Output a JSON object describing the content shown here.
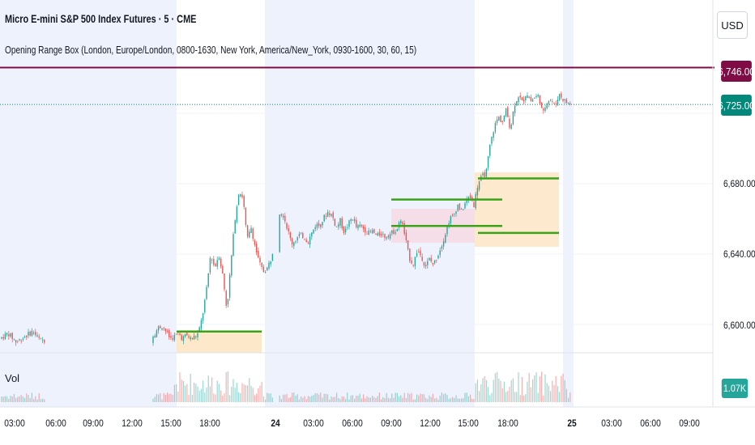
{
  "header": {
    "symbol_title": "Micro E-mini S&P 500 Index Futures · 5 · CME",
    "indicator": "Opening Range Box (London, Europe/London, 0800-1630, New York, America/New_York, 0930-1600, 30, 60, 15)",
    "currency": "USD"
  },
  "price_axis": {
    "ticks": [
      "6,680.00",
      "6,640.00",
      "6,600.00"
    ],
    "labels": {
      "level": "6,746.00",
      "last": "6,725.00",
      "volume": "1.07K"
    }
  },
  "volume_pane": {
    "label": "Vol"
  },
  "time_axis": {
    "ticks": [
      "03:00",
      "06:00",
      "09:00",
      "12:00",
      "15:00",
      "18:00",
      "24",
      "03:00",
      "06:00",
      "09:00",
      "12:00",
      "15:00",
      "18:00",
      "25",
      "03:00",
      "06:00",
      "09:00"
    ]
  },
  "colors": {
    "session_shade": "#eef2fd",
    "range_box_orange": "#fde5c4",
    "range_box_pink": "#f7dbe5",
    "range_line": "#3aa318",
    "level_line": "#800c45",
    "last_price": "#00897b",
    "candle_up": "#26a69a",
    "candle_down": "#ef5350"
  },
  "chart_data": {
    "type": "candlestick",
    "instrument": "Micro E-mini S&P 500 Index Futures",
    "interval": "5",
    "exchange": "CME",
    "ylim": [
      6590,
      6755
    ],
    "price_levels": {
      "horizontal_line": 6746.0,
      "last_price": 6725.0
    },
    "opening_ranges": [
      {
        "session": "New York",
        "high": 6596,
        "low": 6591
      },
      {
        "session": "London",
        "high": 6671,
        "low": 6656
      },
      {
        "session": "New York",
        "high": 6683,
        "low": 6652
      }
    ],
    "path": [
      [
        0,
        6592
      ],
      [
        10,
        6595
      ],
      [
        20,
        6590
      ],
      [
        30,
        6593
      ],
      [
        40,
        6596
      ],
      [
        50,
        6591
      ],
      [
        190,
        6594
      ],
      [
        195,
        6598
      ],
      [
        200,
        6599
      ],
      [
        205,
        6596
      ],
      [
        210,
        6592
      ],
      [
        215,
        6593
      ],
      [
        220,
        6595
      ],
      [
        225,
        6592
      ],
      [
        230,
        6594
      ],
      [
        235,
        6592
      ],
      [
        240,
        6593
      ],
      [
        245,
        6595
      ],
      [
        250,
        6605
      ],
      [
        255,
        6620
      ],
      [
        260,
        6640
      ],
      [
        265,
        6632
      ],
      [
        270,
        6640
      ],
      [
        275,
        6628
      ],
      [
        280,
        6608
      ],
      [
        285,
        6635
      ],
      [
        290,
        6660
      ],
      [
        295,
        6676
      ],
      [
        300,
        6672
      ],
      [
        305,
        6648
      ],
      [
        310,
        6655
      ],
      [
        315,
        6644
      ],
      [
        320,
        6635
      ],
      [
        325,
        6630
      ],
      [
        330,
        6632
      ],
      [
        335,
        6638
      ],
      [
        345,
        6664
      ],
      [
        350,
        6662
      ],
      [
        355,
        6654
      ],
      [
        360,
        6646
      ],
      [
        365,
        6648
      ],
      [
        370,
        6651
      ],
      [
        375,
        6650
      ],
      [
        380,
        6647
      ],
      [
        385,
        6652
      ],
      [
        390,
        6657
      ],
      [
        395,
        6656
      ],
      [
        400,
        6661
      ],
      [
        405,
        6664
      ],
      [
        410,
        6662
      ],
      [
        415,
        6655
      ],
      [
        420,
        6659
      ],
      [
        425,
        6652
      ],
      [
        430,
        6657
      ],
      [
        435,
        6661
      ],
      [
        440,
        6655
      ],
      [
        445,
        6656
      ],
      [
        450,
        6654
      ],
      [
        455,
        6652
      ],
      [
        460,
        6653
      ],
      [
        465,
        6650
      ],
      [
        470,
        6652
      ],
      [
        475,
        6650
      ],
      [
        480,
        6651
      ],
      [
        490,
        6654
      ],
      [
        495,
        6660
      ],
      [
        500,
        6650
      ],
      [
        505,
        6638
      ],
      [
        510,
        6634
      ],
      [
        515,
        6642
      ],
      [
        520,
        6639
      ],
      [
        525,
        6633
      ],
      [
        530,
        6637
      ],
      [
        535,
        6634
      ],
      [
        540,
        6639
      ],
      [
        545,
        6645
      ],
      [
        550,
        6652
      ],
      [
        555,
        6660
      ],
      [
        560,
        6662
      ],
      [
        565,
        6668
      ],
      [
        570,
        6664
      ],
      [
        575,
        6670
      ],
      [
        580,
        6673
      ],
      [
        585,
        6668
      ],
      [
        590,
        6680
      ],
      [
        595,
        6684
      ],
      [
        600,
        6686
      ],
      [
        605,
        6702
      ],
      [
        610,
        6712
      ],
      [
        615,
        6718
      ],
      [
        620,
        6715
      ],
      [
        625,
        6722
      ],
      [
        630,
        6711
      ],
      [
        635,
        6725
      ],
      [
        640,
        6730
      ],
      [
        645,
        6726
      ],
      [
        650,
        6732
      ],
      [
        655,
        6727
      ],
      [
        660,
        6729
      ],
      [
        665,
        6730
      ],
      [
        670,
        6719
      ],
      [
        675,
        6727
      ],
      [
        680,
        6728
      ],
      [
        685,
        6724
      ],
      [
        690,
        6731
      ],
      [
        695,
        6728
      ],
      [
        700,
        6726
      ],
      [
        706,
        6725
      ]
    ]
  }
}
